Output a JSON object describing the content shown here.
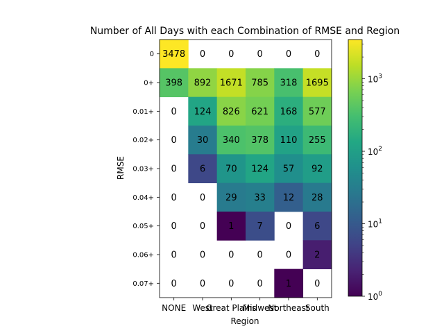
{
  "chart_data": {
    "type": "heatmap",
    "title": "Number of All Days with each Combination of RMSE and Region",
    "xlabel": "Region",
    "ylabel": "RMSE",
    "x_categories": [
      "NONE",
      "West",
      "Great Plains",
      "Midwest",
      "Northeast",
      "South"
    ],
    "y_categories": [
      "0",
      "0+",
      "0.01+",
      "0.02+",
      "0.03+",
      "0.04+",
      "0.05+",
      "0.06+",
      "0.07+"
    ],
    "values": [
      [
        3478,
        0,
        0,
        0,
        0,
        0
      ],
      [
        398,
        892,
        1671,
        785,
        318,
        1695
      ],
      [
        0,
        124,
        826,
        621,
        168,
        577
      ],
      [
        0,
        30,
        340,
        378,
        110,
        255
      ],
      [
        0,
        6,
        70,
        124,
        57,
        92
      ],
      [
        0,
        0,
        29,
        33,
        12,
        28
      ],
      [
        0,
        0,
        1,
        7,
        0,
        6
      ],
      [
        0,
        0,
        0,
        0,
        0,
        2
      ],
      [
        0,
        0,
        0,
        0,
        1,
        0
      ]
    ],
    "colormap": "viridis",
    "color_scale": "log",
    "zero_cells": "blank (white)",
    "colorbar": {
      "scale": "log",
      "range": [
        1,
        3478
      ],
      "tick_labels": [
        "10^0",
        "10^1",
        "10^2",
        "10^3"
      ]
    },
    "grid": false
  }
}
